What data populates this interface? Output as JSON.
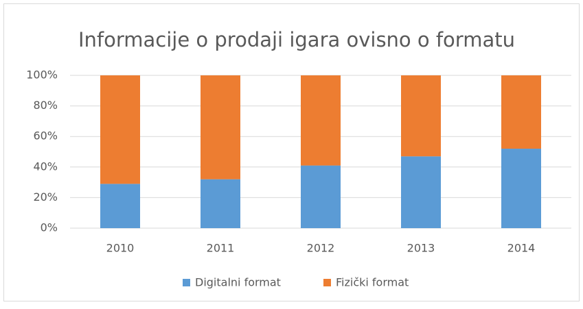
{
  "chart_data": {
    "type": "stacked_bar",
    "title": "Informacije o prodaji igara ovisno o formatu",
    "categories": [
      "2010",
      "2011",
      "2012",
      "2013",
      "2014"
    ],
    "series": [
      {
        "name": "Digitalni format",
        "color": "#5b9bd5",
        "values": [
          29,
          32,
          41,
          47,
          52
        ]
      },
      {
        "name": "Fizički format",
        "color": "#ed7d31",
        "values": [
          71,
          68,
          59,
          53,
          48
        ]
      }
    ],
    "ylim": [
      0,
      100
    ],
    "yticks": [
      {
        "value": 0,
        "label": "0%"
      },
      {
        "value": 20,
        "label": "20%"
      },
      {
        "value": 40,
        "label": "40%"
      },
      {
        "value": 60,
        "label": "60%"
      },
      {
        "value": 80,
        "label": "80%"
      },
      {
        "value": 100,
        "label": "100%"
      }
    ],
    "grid": true,
    "legend": "bottom"
  }
}
